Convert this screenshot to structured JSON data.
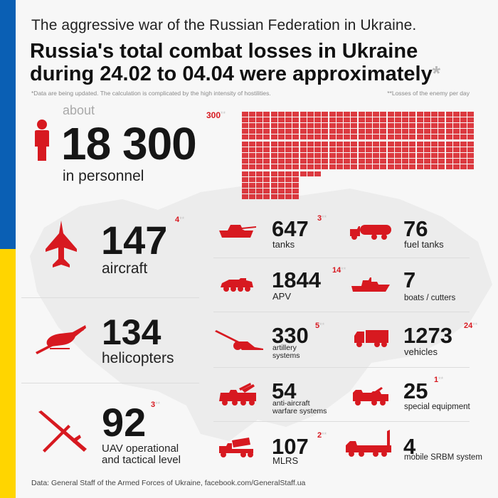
{
  "colors": {
    "accent": "#d71920",
    "flag_blue": "#0a5fb4",
    "flag_yellow": "#ffd500",
    "map": "#ebebeb"
  },
  "header": {
    "subtitle": "The aggressive war of the Russian Federation in Ukraine.",
    "title_line1": "Russia's total combat losses in Ukraine",
    "title_line2": "during 24.02 to 04.04 were approximately",
    "title_star": "*",
    "note_left": "*Data are being updated. The calculation is complicated by the high intensity of hostilities.",
    "note_right": "**Losses of the enemy per day"
  },
  "personnel": {
    "about": "about",
    "value": "18 300",
    "label": "in personnel",
    "delta": "300",
    "delta_stars": "**",
    "icon": "person-icon"
  },
  "items": {
    "aircraft": {
      "value": "147",
      "label": "aircraft",
      "delta": "4",
      "stars": "**",
      "icon": "jet-fighter-icon"
    },
    "helicopters": {
      "value": "134",
      "label": "helicopters",
      "delta": "",
      "stars": "",
      "icon": "helicopter-icon"
    },
    "uav": {
      "value": "92",
      "label_line1": "UAV operational",
      "label_line2": "and tactical level",
      "delta": "3",
      "stars": "**",
      "icon": "drone-icon"
    },
    "tanks": {
      "value": "647",
      "label": "tanks",
      "delta": "3",
      "stars": "**",
      "icon": "tank-icon"
    },
    "apv": {
      "value": "1844",
      "label": "APV",
      "delta": "14",
      "stars": "**",
      "icon": "armored-vehicle-icon"
    },
    "artillery": {
      "value": "330",
      "label_line1": "artillery",
      "label_line2": "systems",
      "delta": "5",
      "stars": "**",
      "icon": "artillery-icon"
    },
    "anti_aircraft": {
      "value": "54",
      "label_line1": "anti-aircraft",
      "label_line2": "warfare systems",
      "delta": "",
      "stars": "",
      "icon": "anti-aircraft-icon"
    },
    "mlrs": {
      "value": "107",
      "label": "MLRS",
      "delta": "2",
      "stars": "**",
      "icon": "mlrs-icon"
    },
    "fuel_tanks": {
      "value": "76",
      "label": "fuel tanks",
      "delta": "",
      "stars": "",
      "icon": "fuel-truck-icon"
    },
    "boats": {
      "value": "7",
      "label": "boats / cutters",
      "delta": "",
      "stars": "",
      "icon": "boat-icon"
    },
    "vehicles": {
      "value": "1273",
      "label": "vehicles",
      "delta": "24",
      "stars": "**",
      "icon": "truck-icon"
    },
    "special_equipment": {
      "value": "25",
      "label": "special equipment",
      "delta": "1",
      "stars": "**",
      "icon": "special-equipment-icon"
    },
    "srbm": {
      "value": "4",
      "label": "mobile SRBM system",
      "delta": "",
      "stars": "",
      "icon": "missile-launcher-icon"
    }
  },
  "personnel_grid": {
    "blocks_full": 18,
    "block_partial_cells": 3
  },
  "footer": "Data: General Staff of the Armed Forces of Ukraine, facebook.com/GeneralStaff.ua"
}
